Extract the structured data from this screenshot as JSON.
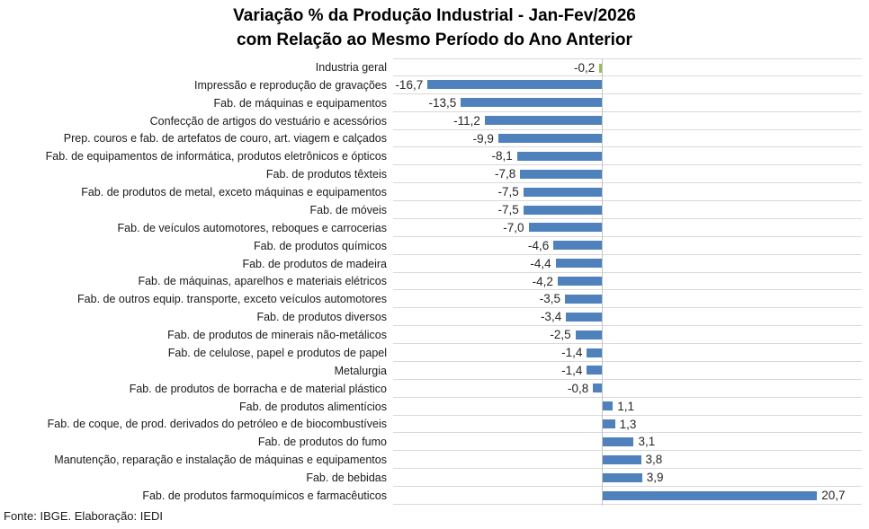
{
  "title": {
    "line1": "Variação % da Produção Industrial - Jan-Fev/2026",
    "line2": "com Relação ao Mesmo Período do Ano Anterior"
  },
  "footer": "Fonte: IBGE. Elaboração: IEDI",
  "chart_data": {
    "type": "bar",
    "orientation": "horizontal",
    "title": "Variação % da Produção Industrial - Jan-Fev/2026 com Relação ao Mesmo Período do Ano Anterior",
    "xlabel": "",
    "ylabel": "",
    "xlim": [
      -20,
      25
    ],
    "grid": "category-separators",
    "legend": "none",
    "categories": [
      "Industria geral",
      "Impressão e reprodução de gravações",
      "Fab. de máquinas e equipamentos",
      "Confecção de artigos do vestuário e acessórios",
      "Prep. couros e fab. de artefatos de couro, art. viagem e calçados",
      "Fab. de equipamentos de informática, produtos eletrônicos e ópticos",
      "Fab. de produtos têxteis",
      "Fab. de produtos de metal, exceto máquinas e equipamentos",
      "Fab. de móveis",
      "Fab. de veículos automotores, reboques e carrocerias",
      "Fab. de produtos químicos",
      "Fab. de produtos de madeira",
      "Fab. de máquinas, aparelhos e materiais elétricos",
      "Fab. de outros equip. transporte, exceto veículos automotores",
      "Fab. de produtos diversos",
      "Fab. de produtos de minerais não-metálicos",
      "Fab. de celulose, papel e produtos de papel",
      "Metalurgia",
      "Fab. de produtos de borracha e de material plástico",
      "Fab. de produtos alimentícios",
      "Fab. de coque, de prod. derivados do petróleo e de biocombustíveis",
      "Fab. de produtos do fumo",
      "Manutenção, reparação e instalação de máquinas e equipamentos",
      "Fab. de bebidas",
      "Fab. de produtos farmoquímicos e farmacêuticos"
    ],
    "values": [
      -0.2,
      -16.7,
      -13.5,
      -11.2,
      -9.9,
      -8.1,
      -7.8,
      -7.5,
      -7.5,
      -7.0,
      -4.6,
      -4.4,
      -4.2,
      -3.5,
      -3.4,
      -2.5,
      -1.4,
      -1.4,
      -0.8,
      1.1,
      1.3,
      3.1,
      3.8,
      3.9,
      20.7
    ],
    "value_labels": [
      "-0,2",
      "-16,7",
      "-13,5",
      "-11,2",
      "-9,9",
      "-8,1",
      "-7,8",
      "-7,5",
      "-7,5",
      "-7,0",
      "-4,6",
      "-4,4",
      "-4,2",
      "-3,5",
      "-3,4",
      "-2,5",
      "-1,4",
      "-1,4",
      "-0,8",
      "1,1",
      "1,3",
      "3,1",
      "3,8",
      "3,9",
      "20,7"
    ],
    "highlight_index": 0,
    "colors": {
      "bar": "#4f81bd",
      "highlight_bar": "#9bbb59",
      "gridline": "#d9d9d9",
      "zero_axis": "#c3c3c3",
      "label_text": "#262626"
    }
  }
}
